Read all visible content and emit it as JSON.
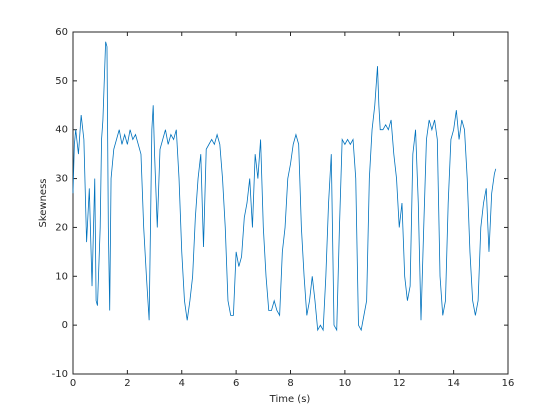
{
  "chart_data": {
    "type": "line",
    "xlabel": "Time (s)",
    "ylabel": "Skewness",
    "xlim": [
      0,
      16
    ],
    "ylim": [
      -10,
      60
    ],
    "xticks": [
      0,
      2,
      4,
      6,
      8,
      10,
      12,
      14,
      16
    ],
    "yticks": [
      -10,
      0,
      10,
      20,
      30,
      40,
      50,
      60
    ],
    "series": [
      {
        "color": "#0072bd",
        "x": [
          0,
          0.05,
          0.1,
          0.2,
          0.3,
          0.4,
          0.5,
          0.6,
          0.7,
          0.8,
          0.85,
          0.9,
          1.0,
          1.05,
          1.1,
          1.2,
          1.25,
          1.3,
          1.35,
          1.4,
          1.5,
          1.6,
          1.7,
          1.8,
          1.9,
          2.0,
          2.1,
          2.2,
          2.3,
          2.4,
          2.5,
          2.6,
          2.7,
          2.8,
          2.85,
          2.9,
          2.95,
          3.0,
          3.1,
          3.2,
          3.3,
          3.4,
          3.5,
          3.6,
          3.7,
          3.8,
          3.9,
          4.0,
          4.1,
          4.2,
          4.3,
          4.4,
          4.5,
          4.6,
          4.7,
          4.8,
          4.9,
          5.0,
          5.1,
          5.2,
          5.3,
          5.4,
          5.5,
          5.6,
          5.7,
          5.8,
          5.9,
          6.0,
          6.1,
          6.2,
          6.3,
          6.4,
          6.5,
          6.6,
          6.7,
          6.8,
          6.9,
          7.0,
          7.1,
          7.2,
          7.3,
          7.4,
          7.5,
          7.6,
          7.7,
          7.8,
          7.9,
          8.0,
          8.1,
          8.2,
          8.3,
          8.4,
          8.5,
          8.6,
          8.7,
          8.8,
          8.9,
          9.0,
          9.1,
          9.2,
          9.3,
          9.4,
          9.5,
          9.6,
          9.7,
          9.8,
          9.9,
          10.0,
          10.1,
          10.2,
          10.3,
          10.4,
          10.5,
          10.6,
          10.7,
          10.8,
          10.9,
          11.0,
          11.1,
          11.2,
          11.25,
          11.3,
          11.4,
          11.5,
          11.6,
          11.7,
          11.8,
          11.9,
          12.0,
          12.1,
          12.2,
          12.3,
          12.4,
          12.5,
          12.6,
          12.7,
          12.8,
          12.9,
          13.0,
          13.1,
          13.2,
          13.3,
          13.4,
          13.5,
          13.6,
          13.7,
          13.8,
          13.9,
          14.0,
          14.1,
          14.2,
          14.3,
          14.4,
          14.5,
          14.6,
          14.7,
          14.8,
          14.9,
          15.0,
          15.1,
          15.2,
          15.3,
          15.4,
          15.5,
          15.55
        ],
        "values": [
          27,
          37,
          40,
          35,
          43,
          38,
          17,
          28,
          8,
          30,
          5,
          4,
          20,
          38,
          42,
          58,
          57,
          20,
          3,
          30,
          36,
          38,
          40,
          37,
          39,
          37,
          40,
          38,
          39,
          37,
          35,
          20,
          10,
          1,
          20,
          40,
          45,
          35,
          20,
          36,
          38,
          40,
          37,
          39,
          38,
          40,
          30,
          15,
          5,
          1,
          5,
          10,
          22,
          30,
          35,
          16,
          36,
          37,
          38,
          37,
          39,
          37,
          30,
          20,
          5,
          2,
          2,
          15,
          12,
          14,
          22,
          25,
          30,
          20,
          35,
          30,
          38,
          20,
          10,
          3,
          3,
          5,
          3,
          2,
          15,
          20,
          30,
          33,
          37,
          39,
          37,
          20,
          10,
          2,
          5,
          10,
          5,
          -1,
          0,
          -1,
          10,
          25,
          35,
          0,
          -1,
          20,
          38,
          37,
          38,
          37,
          38,
          30,
          0,
          -1,
          2,
          5,
          30,
          40,
          45,
          53,
          45,
          40,
          40,
          41,
          40,
          42,
          35,
          30,
          20,
          25,
          10,
          5,
          8,
          35,
          40,
          25,
          1,
          20,
          38,
          42,
          40,
          42,
          38,
          10,
          2,
          5,
          25,
          38,
          40,
          44,
          38,
          42,
          40,
          30,
          15,
          5,
          2,
          5,
          20,
          25,
          28,
          15,
          27,
          31,
          32
        ]
      }
    ]
  }
}
